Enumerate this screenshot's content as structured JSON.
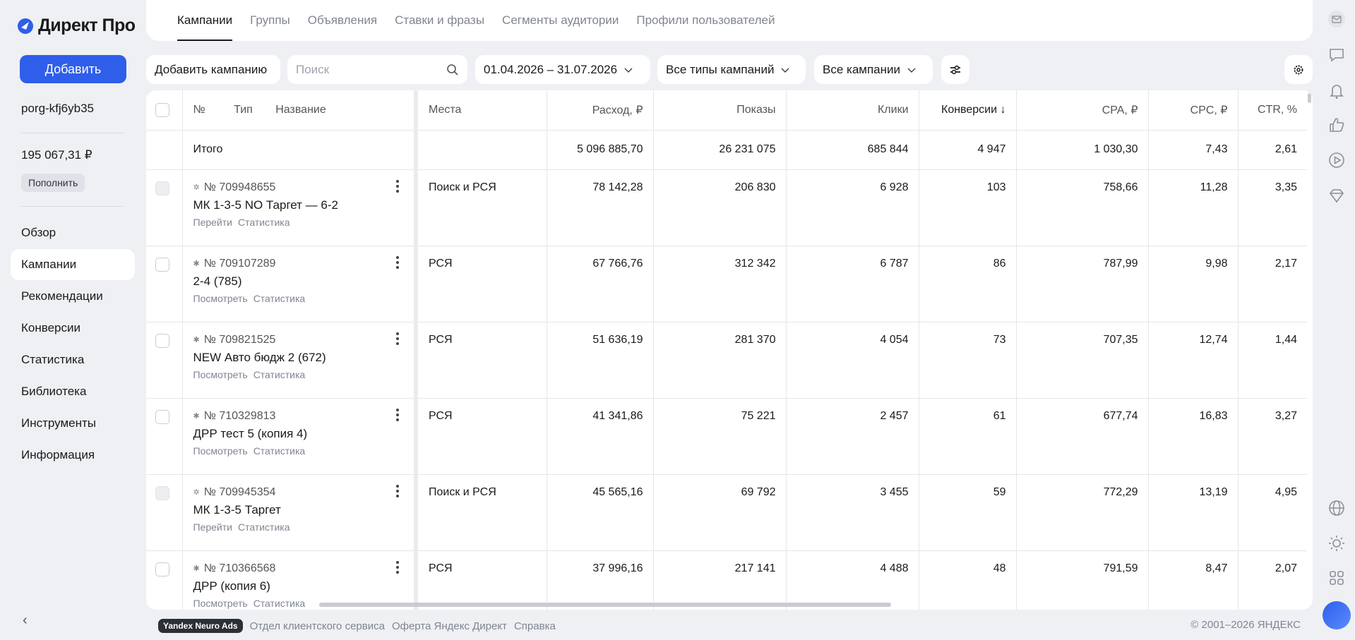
{
  "app": {
    "logo_text": "Директ Про",
    "add_label": "Добавить",
    "login": "porg-kfj6yb35",
    "balance": "195 067,31 ₽",
    "topup_label": "Пополнить"
  },
  "nav": [
    {
      "label": "Обзор"
    },
    {
      "label": "Кампании"
    },
    {
      "label": "Рекомендации"
    },
    {
      "label": "Конверсии"
    },
    {
      "label": "Статистика"
    },
    {
      "label": "Библиотека"
    },
    {
      "label": "Инструменты"
    },
    {
      "label": "Информация"
    }
  ],
  "tabs": [
    {
      "label": "Кампании"
    },
    {
      "label": "Группы"
    },
    {
      "label": "Объявления"
    },
    {
      "label": "Ставки и фразы"
    },
    {
      "label": "Сегменты аудитории"
    },
    {
      "label": "Профили пользователей"
    }
  ],
  "toolbar": {
    "add_campaign": "Добавить кампанию",
    "search_placeholder": "Поиск",
    "date_range": "01.04.2026 – 31.07.2026",
    "types_filter": "Все типы кампаний",
    "campaigns_filter": "Все кампании"
  },
  "table": {
    "headers": {
      "no": "№",
      "type": "Тип",
      "name": "Название",
      "places": "Места",
      "cost": "Расход, ₽",
      "shows": "Показы",
      "clicks": "Клики",
      "conv": "Конверсии ↓",
      "cpa": "CPA, ₽",
      "cpc": "CPC, ₽",
      "ctr": "CTR, %"
    },
    "total": {
      "label": "Итого",
      "cost": "5 096 885,70",
      "shows": "26 231 075",
      "clicks": "685 844",
      "conv": "4 947",
      "cpa": "1 030,30",
      "cpc": "7,43",
      "ctr": "2,61"
    },
    "rows": [
      {
        "id": "№ 709948655",
        "name": "МК 1-3-5 NO Таргет — 6-2",
        "link1": "Перейти",
        "link2": "Статистика",
        "places": "Поиск и РСЯ",
        "cost": "78 142,28",
        "shows": "206 830",
        "clicks": "6 928",
        "conv": "103",
        "cpa": "758,66",
        "cpc": "11,28",
        "ctr": "3,35"
      },
      {
        "id": "№ 709107289",
        "name": "2-4 (785)",
        "link1": "Посмотреть",
        "link2": "Статистика",
        "places": "РСЯ",
        "cost": "67 766,76",
        "shows": "312 342",
        "clicks": "6 787",
        "conv": "86",
        "cpa": "787,99",
        "cpc": "9,98",
        "ctr": "2,17"
      },
      {
        "id": "№ 709821525",
        "name": "NEW Авто бюдж 2 (672)",
        "link1": "Посмотреть",
        "link2": "Статистика",
        "places": "РСЯ",
        "cost": "51 636,19",
        "shows": "281 370",
        "clicks": "4 054",
        "conv": "73",
        "cpa": "707,35",
        "cpc": "12,74",
        "ctr": "1,44"
      },
      {
        "id": "№ 710329813",
        "name": "ДРР тест 5 (копия 4)",
        "link1": "Посмотреть",
        "link2": "Статистика",
        "places": "РСЯ",
        "cost": "41 341,86",
        "shows": "75 221",
        "clicks": "2 457",
        "conv": "61",
        "cpa": "677,74",
        "cpc": "16,83",
        "ctr": "3,27"
      },
      {
        "id": "№ 709945354",
        "name": "МК 1-3-5 Таргет",
        "link1": "Перейти",
        "link2": "Статистика",
        "places": "Поиск и РСЯ",
        "cost": "45 565,16",
        "shows": "69 792",
        "clicks": "3 455",
        "conv": "59",
        "cpa": "772,29",
        "cpc": "13,19",
        "ctr": "4,95"
      },
      {
        "id": "№ 710366568",
        "name": "ДРР (копия 6)",
        "link1": "Посмотреть",
        "link2": "Статистика",
        "places": "РСЯ",
        "cost": "37 996,16",
        "shows": "217 141",
        "clicks": "4 488",
        "conv": "48",
        "cpa": "791,59",
        "cpc": "8,47",
        "ctr": "2,07"
      }
    ]
  },
  "footer": {
    "badge": "Yandex Neuro Ads",
    "link1": "Отдел клиентского сервиса",
    "link2": "Оферта Яндекс Директ",
    "link3": "Справка",
    "copyright": "© 2001–2026 ЯНДЕКС"
  },
  "icons": {
    "rail": [
      "mail-icon",
      "chat-icon",
      "bell-icon",
      "thumb-up-icon",
      "play-icon",
      "diamond-icon",
      "globe-icon",
      "sun-icon",
      "apps-icon"
    ]
  },
  "colors": {
    "accent": "#2f5eea",
    "background": "#eef0f4"
  }
}
